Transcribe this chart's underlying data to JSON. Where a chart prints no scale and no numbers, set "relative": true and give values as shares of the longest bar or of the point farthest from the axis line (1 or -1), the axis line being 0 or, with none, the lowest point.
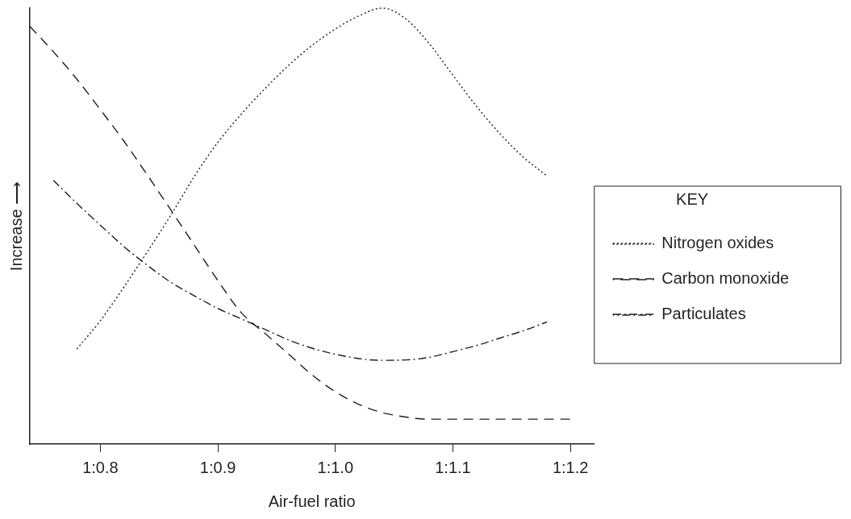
{
  "chart_data": {
    "type": "line",
    "relative": true,
    "xlabel": "Air-fuel ratio",
    "ylabel": "Increase ⟶",
    "legend": "right",
    "legend_title": "KEY",
    "marker": "none",
    "grid": false,
    "categories": [
      null,
      null,
      null,
      "1:0.8",
      null,
      null,
      null,
      null,
      "1:0.9",
      null,
      null,
      null,
      null,
      "1:1.0",
      null,
      null,
      null,
      null,
      "1:1.1",
      null,
      null,
      null,
      null,
      "1:1.2",
      null
    ],
    "series": [
      {
        "name": "Nitrogen oxides",
        "color": "#231f20",
        "line_style": "dotted",
        "values": [
          null,
          null,
          0.218,
          0.283,
          0.36,
          0.441,
          0.525,
          0.614,
          0.692,
          0.757,
          0.815,
          0.868,
          0.914,
          0.952,
          0.982,
          1,
          0.975,
          0.918,
          0.846,
          0.775,
          0.712,
          0.658,
          0.615,
          null,
          null
        ]
      },
      {
        "name": "Carbon monoxide",
        "color": "#231f20",
        "line_style": "dashed",
        "values": [
          0.958,
          0.9,
          0.837,
          0.767,
          0.695,
          0.617,
          0.537,
          0.456,
          0.375,
          0.301,
          0.254,
          0.207,
          0.159,
          0.12,
          0.091,
          0.072,
          0.062,
          0.057,
          0.057,
          0.057,
          0.057,
          0.057,
          0.057,
          0.057,
          null
        ]
      },
      {
        "name": "Particulates",
        "color": "#231f20",
        "line_style": "dashdot",
        "values": [
          null,
          0.605,
          0.552,
          0.502,
          0.453,
          0.41,
          0.371,
          0.34,
          0.311,
          0.287,
          0.263,
          0.239,
          0.22,
          0.206,
          0.196,
          0.192,
          0.193,
          0.199,
          0.212,
          0.226,
          0.243,
          0.26,
          0.28,
          null,
          null
        ]
      }
    ]
  }
}
